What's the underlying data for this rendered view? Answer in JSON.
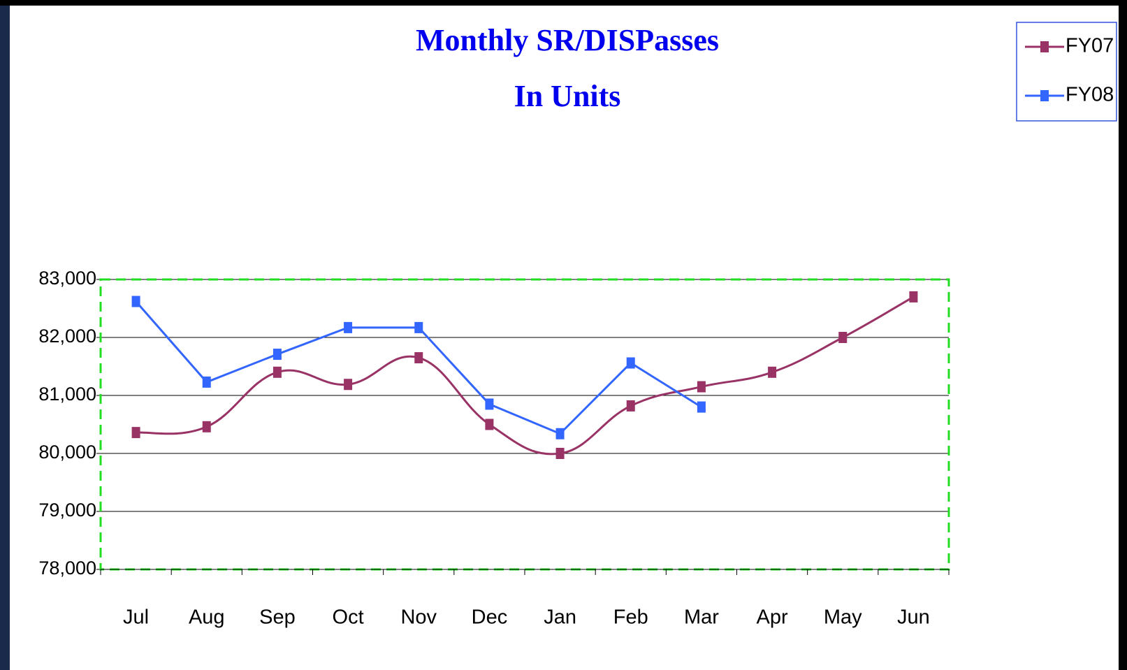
{
  "chart_data": {
    "type": "line",
    "title": "Monthly  SR/DISPasses",
    "subtitle": "In Units",
    "categories": [
      "Jul",
      "Aug",
      "Sep",
      "Oct",
      "Nov",
      "Dec",
      "Jan",
      "Feb",
      "Mar",
      "Apr",
      "May",
      "Jun"
    ],
    "series": [
      {
        "name": "FY07",
        "color": "#993366",
        "values": [
          80360,
          80460,
          81400,
          81190,
          81650,
          80500,
          80000,
          80820,
          81150,
          81400,
          82000,
          82700
        ]
      },
      {
        "name": "FY08",
        "color": "#3366ff",
        "values": [
          82620,
          81230,
          81710,
          82170,
          82170,
          80850,
          80340,
          81560,
          80800,
          null,
          null,
          null
        ]
      }
    ],
    "ylim": [
      78000,
      83000
    ],
    "yticks": [
      {
        "value": 78000,
        "label": "78,000"
      },
      {
        "value": 79000,
        "label": "79,000"
      },
      {
        "value": 80000,
        "label": "80,000"
      },
      {
        "value": 81000,
        "label": "81,000"
      },
      {
        "value": 82000,
        "label": "82,000"
      },
      {
        "value": 83000,
        "label": "83,000"
      }
    ],
    "grid": true,
    "legend": "top-right"
  }
}
